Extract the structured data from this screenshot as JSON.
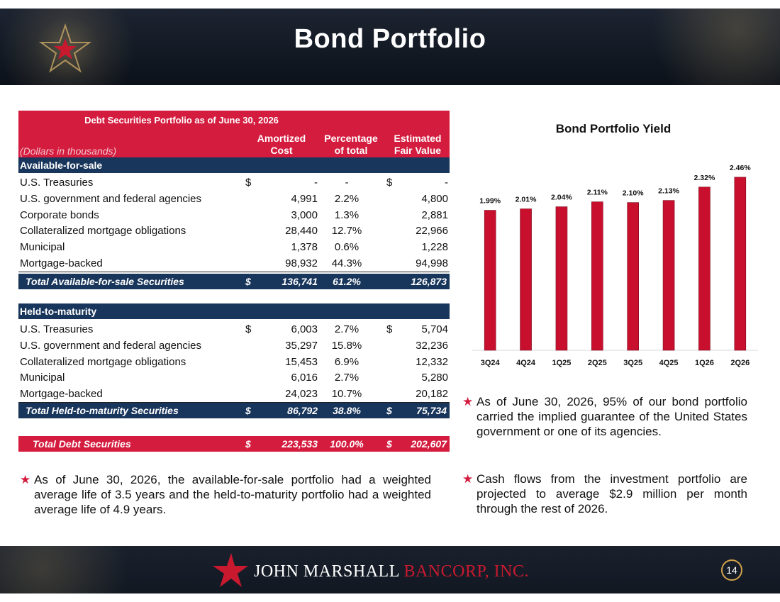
{
  "header": {
    "title": "Bond Portfolio"
  },
  "table": {
    "title": "Debt Securities Portfolio as of June 30, 2026",
    "dollars_note": "(Dollars in thousands)",
    "col_amortized": "Amortized Cost",
    "col_amortized_l1": "Amortized",
    "col_amortized_l2": "Cost",
    "col_pct_l1": "Percentage",
    "col_pct_l2": "of total",
    "col_fv_l1": "Estimated",
    "col_fv_l2": "Fair Value",
    "afs_label": "Available-for-sale",
    "afs_rows": [
      {
        "label": "U.S. Treasuries",
        "d1": "$",
        "v1": "-",
        "p": "-",
        "d2": "$",
        "v2": "-"
      },
      {
        "label": "U.S. government and federal agencies",
        "d1": "",
        "v1": "4,991",
        "p": "2.2%",
        "d2": "",
        "v2": "4,800"
      },
      {
        "label": "Corporate bonds",
        "d1": "",
        "v1": "3,000",
        "p": "1.3%",
        "d2": "",
        "v2": "2,881"
      },
      {
        "label": "Collateralized mortgage obligations",
        "d1": "",
        "v1": "28,440",
        "p": "12.7%",
        "d2": "",
        "v2": "22,966"
      },
      {
        "label": "Municipal",
        "d1": "",
        "v1": "1,378",
        "p": "0.6%",
        "d2": "",
        "v2": "1,228"
      },
      {
        "label": "Mortgage-backed",
        "d1": "",
        "v1": "98,932",
        "p": "44.3%",
        "d2": "",
        "v2": "94,998"
      }
    ],
    "afs_total": {
      "label": "Total Available-for-sale Securities",
      "d1": "$",
      "v1": "136,741",
      "p": "61.2%",
      "d2": "",
      "v2": "126,873"
    },
    "htm_label": "Held-to-maturity",
    "htm_rows": [
      {
        "label": "U.S. Treasuries",
        "d1": "$",
        "v1": "6,003",
        "p": "2.7%",
        "d2": "$",
        "v2": "5,704"
      },
      {
        "label": "U.S. government and federal agencies",
        "d1": "",
        "v1": "35,297",
        "p": "15.8%",
        "d2": "",
        "v2": "32,236"
      },
      {
        "label": "Collateralized mortgage obligations",
        "d1": "",
        "v1": "15,453",
        "p": "6.9%",
        "d2": "",
        "v2": "12,332"
      },
      {
        "label": "Municipal",
        "d1": "",
        "v1": "6,016",
        "p": "2.7%",
        "d2": "",
        "v2": "5,280"
      },
      {
        "label": "Mortgage-backed",
        "d1": "",
        "v1": "24,023",
        "p": "10.7%",
        "d2": "",
        "v2": "20,182"
      }
    ],
    "htm_total": {
      "label": "Total Held-to-maturity Securities",
      "d1": "$",
      "v1": "86,792",
      "p": "38.8%",
      "d2": "$",
      "v2": "75,734"
    },
    "grand_total": {
      "label": "Total Debt Securities",
      "d1": "$",
      "v1": "223,533",
      "p": "100.0%",
      "d2": "$",
      "v2": "202,607"
    }
  },
  "bullets": {
    "left": "As of June 30, 2026, the available-for-sale portfolio had a weighted average life of 3.5 years and the held-to-maturity portfolio had a weighted average life of 4.9 years.",
    "right1": "As of June 30, 2026, 95% of our bond portfolio carried the implied guarantee of the United States government or one of its agencies.",
    "right2": "Cash flows from the investment portfolio are projected to average $2.9 million per month through the rest of 2026."
  },
  "chart_data": {
    "type": "bar",
    "title": "Bond Portfolio Yield",
    "categories": [
      "3Q24",
      "4Q24",
      "1Q25",
      "2Q25",
      "3Q25",
      "4Q25",
      "1Q26",
      "2Q26"
    ],
    "values": [
      1.99,
      2.01,
      2.04,
      2.11,
      2.1,
      2.13,
      2.32,
      2.46
    ],
    "labels": [
      "1.99%",
      "2.01%",
      "2.04%",
      "2.11%",
      "2.10%",
      "2.13%",
      "2.32%",
      "2.46%"
    ],
    "bar_color": "#c8102e",
    "xlabel": "",
    "ylabel": "",
    "ylim": [
      0,
      2.6
    ],
    "grid": false,
    "legend": "none"
  },
  "footer": {
    "logo_white": "JOHN MARSHALL",
    "logo_red": "BANCORP, INC.",
    "page_number": "14"
  },
  "colors": {
    "accent_red": "#d41c3f",
    "navy": "#18355b",
    "gold": "#d2a24a"
  }
}
